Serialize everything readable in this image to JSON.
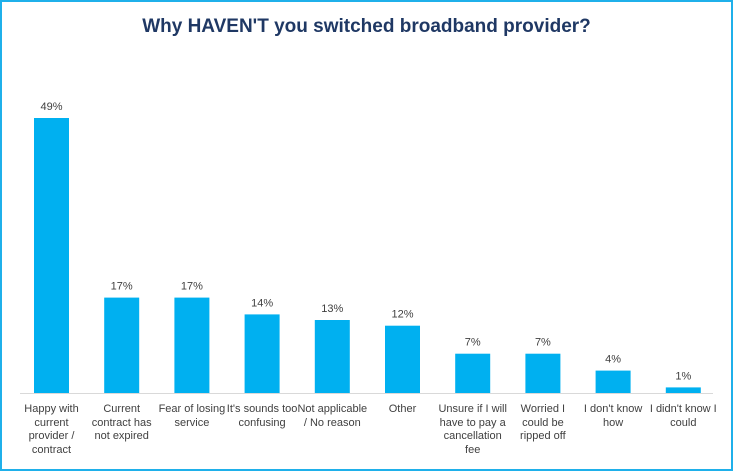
{
  "chart_data": {
    "type": "bar",
    "title": "Why HAVEN'T you switched broadband  provider?",
    "categories": [
      "Happy with current provider / contract",
      "Current contract has not expired",
      "Fear of losing service",
      "It's sounds too confusing",
      "Not applicable / No reason",
      "Other",
      "Unsure if I will have to pay a cancellation fee",
      "Worried I could be ripped off",
      "I don't know how",
      "I didn't know I could"
    ],
    "values": [
      49,
      17,
      17,
      14,
      13,
      12,
      7,
      7,
      4,
      1
    ],
    "data_labels": [
      "49%",
      "17%",
      "17%",
      "14%",
      "13%",
      "12%",
      "7%",
      "7%",
      "4%",
      "1%"
    ],
    "bar_color": "#00b0f0",
    "title_color": "#1f3864",
    "border_color": "#1fb0ea",
    "xlabel": "",
    "ylabel": "",
    "ylim": [
      0,
      50
    ],
    "grid": false,
    "legend": "none"
  }
}
